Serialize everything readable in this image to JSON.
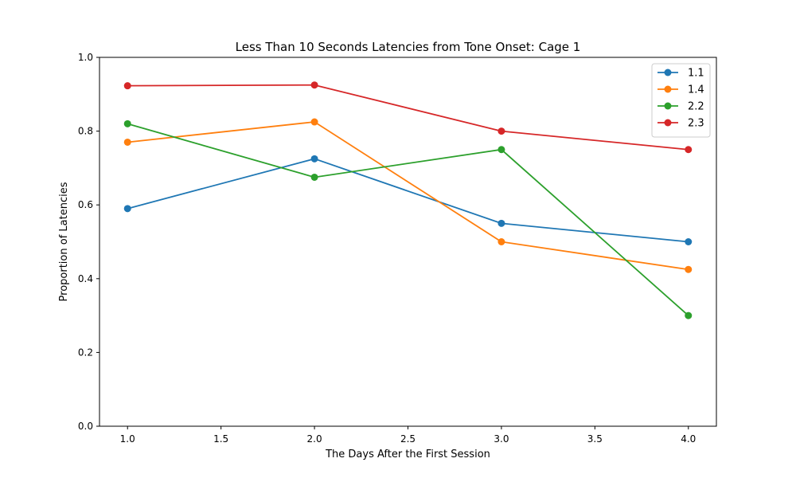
{
  "chart_data": {
    "type": "line",
    "title": "Less Than 10 Seconds Latencies from Tone Onset: Cage 1",
    "xlabel": "The Days After the First Session",
    "ylabel": "Proportion of Latencies",
    "xlim": [
      0.85,
      4.15
    ],
    "ylim": [
      0.0,
      1.0
    ],
    "xticks": [
      "1.0",
      "1.5",
      "2.0",
      "2.5",
      "3.0",
      "3.5",
      "4.0"
    ],
    "yticks": [
      "0.0",
      "0.2",
      "0.4",
      "0.6",
      "0.8",
      "1.0"
    ],
    "grid": false,
    "legend_position": "top-right",
    "x": [
      1.0,
      2.0,
      3.0,
      4.0
    ],
    "series": [
      {
        "name": "1.1",
        "color": "#1f77b4",
        "values": [
          0.59,
          0.725,
          0.55,
          0.5
        ]
      },
      {
        "name": "1.4",
        "color": "#ff7f0e",
        "values": [
          0.77,
          0.825,
          0.5,
          0.425
        ]
      },
      {
        "name": "2.2",
        "color": "#2ca02c",
        "values": [
          0.82,
          0.675,
          0.75,
          0.3
        ]
      },
      {
        "name": "2.3",
        "color": "#d62728",
        "values": [
          0.923,
          0.925,
          0.8,
          0.75
        ]
      }
    ]
  }
}
